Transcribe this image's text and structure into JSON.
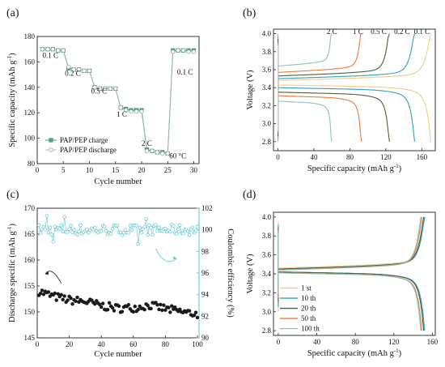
{
  "chart_data": [
    {
      "id": "a",
      "panel_label": "(a)",
      "type": "line",
      "xlabel": "Cycle number",
      "ylabel": "Specific capacity (mAh g",
      "ylabel_sup": "-1",
      "ylabel_end": ")",
      "xlim": [
        0,
        31
      ],
      "ylim": [
        80,
        180
      ],
      "xticks": [
        0,
        5,
        10,
        15,
        20,
        25,
        30
      ],
      "yticks": [
        80,
        100,
        120,
        140,
        160,
        180
      ],
      "rate_labels": [
        "0.1 C",
        "0.2 C",
        "0.5 C",
        "1 C",
        "2 C",
        "0.1 C"
      ],
      "temperature": "60 °C",
      "legend": [
        "PAP/PEP charge",
        "PAP/PEP discharge"
      ],
      "series": [
        {
          "name": "PAP/PEP charge",
          "color": "#4aa38c",
          "marker": "filled-square",
          "x": [
            1,
            2,
            3,
            4,
            5,
            6,
            7,
            8,
            9,
            10,
            11,
            12,
            13,
            14,
            15,
            16,
            17,
            18,
            19,
            20,
            21,
            22,
            23,
            24,
            25,
            26,
            27,
            28,
            29,
            30
          ],
          "y": [
            170,
            170,
            170,
            169,
            169,
            155,
            154,
            154,
            153,
            153,
            140,
            139,
            139,
            139,
            139,
            124,
            123,
            122,
            122,
            122,
            91,
            90,
            89,
            89,
            88,
            169,
            169,
            169,
            169,
            169
          ]
        },
        {
          "name": "PAP/PEP discharge",
          "color": "#4aa38c",
          "marker": "open-circle",
          "x": [
            1,
            2,
            3,
            4,
            5,
            6,
            7,
            8,
            9,
            10,
            11,
            12,
            13,
            14,
            15,
            16,
            17,
            18,
            19,
            20,
            21,
            22,
            23,
            24,
            25,
            26,
            27,
            28,
            29,
            30
          ],
          "y": [
            170,
            170,
            170,
            169,
            169,
            156,
            154,
            154,
            153,
            153,
            140,
            139,
            139,
            139,
            139,
            124,
            122,
            121,
            121,
            121,
            90,
            90,
            89,
            88,
            88,
            168,
            169,
            169,
            168,
            168
          ]
        }
      ]
    },
    {
      "id": "b",
      "panel_label": "(b)",
      "type": "line",
      "xlabel": "Specific capacity (mAh g",
      "xlabel_sup": "-1",
      "xlabel_end": ")",
      "ylabel": "Voltage (V)",
      "xlim": [
        -5,
        175
      ],
      "ylim": [
        2.7,
        4.05
      ],
      "xticks": [
        0,
        40,
        80,
        120,
        160
      ],
      "yticks": [
        2.8,
        3.0,
        3.2,
        3.4,
        3.6,
        3.8,
        4.0
      ],
      "series": [
        {
          "name": "2 C",
          "color": "#8fc1bd",
          "capacity": 60,
          "charge_plateau": 3.64,
          "discharge_plateau": 3.22
        },
        {
          "name": "1 C",
          "color": "#ef7a3c",
          "capacity": 93,
          "charge_plateau": 3.57,
          "discharge_plateau": 3.28
        },
        {
          "name": "0.5 C",
          "color": "#4e5e3a",
          "capacity": 124,
          "charge_plateau": 3.53,
          "discharge_plateau": 3.32
        },
        {
          "name": "0.2 C",
          "color": "#2ca3bc",
          "capacity": 152,
          "charge_plateau": 3.5,
          "discharge_plateau": 3.37
        },
        {
          "name": "0.1 C",
          "color": "#f5c98a",
          "capacity": 170,
          "charge_plateau": 3.48,
          "discharge_plateau": 3.4
        }
      ]
    },
    {
      "id": "c",
      "panel_label": "(c)",
      "type": "scatter",
      "xlabel": "Cycle number",
      "ylabel": "Discharge specific (mAh g",
      "ylabel_sup": "-1",
      "ylabel_end": ")",
      "y2label": "Coulombic efficiency (%)",
      "xlim": [
        0,
        101
      ],
      "ylim": [
        145,
        170
      ],
      "y2lim": [
        90,
        102
      ],
      "xticks": [
        0,
        20,
        40,
        60,
        80,
        100
      ],
      "yticks": [
        145,
        150,
        155,
        160,
        165,
        170
      ],
      "y2ticks": [
        90,
        92,
        94,
        96,
        98,
        100,
        102
      ],
      "capacity_color": "#1a1a1a",
      "efficiency_color": "#5cc6d0",
      "capacity_anchor_x": [
        1,
        10,
        20,
        30,
        40,
        50,
        60,
        70,
        80,
        90,
        100
      ],
      "capacity_anchor_y": [
        154,
        153,
        152.3,
        152,
        151.2,
        150.7,
        150.8,
        151.3,
        150.6,
        150,
        149.6
      ],
      "efficiency_anchor_x": [
        1,
        100
      ],
      "efficiency_anchor_y": [
        100.1,
        100
      ]
    },
    {
      "id": "d",
      "panel_label": "(d)",
      "type": "line",
      "xlabel": "Specific capacity (mAh g",
      "xlabel_sup": "-1",
      "xlabel_end": ")",
      "ylabel": "Voltage (V)",
      "xlim": [
        -5,
        163
      ],
      "ylim": [
        2.75,
        4.05
      ],
      "xticks": [
        0,
        40,
        80,
        120,
        160
      ],
      "yticks": [
        2.8,
        3.0,
        3.2,
        3.4,
        3.6,
        3.8,
        4.0
      ],
      "series": [
        {
          "name": "1 st",
          "color": "#f5c98a",
          "capacity": 151,
          "charge_plateau": 3.46,
          "discharge_plateau": 3.39
        },
        {
          "name": "10 th",
          "color": "#2ca3bc",
          "capacity": 152,
          "charge_plateau": 3.45,
          "discharge_plateau": 3.39
        },
        {
          "name": "20 th",
          "color": "#4e5e3a",
          "capacity": 151,
          "charge_plateau": 3.45,
          "discharge_plateau": 3.39
        },
        {
          "name": "50 th",
          "color": "#ef7a3c",
          "capacity": 149,
          "charge_plateau": 3.44,
          "discharge_plateau": 3.38
        },
        {
          "name": "100 th",
          "color": "#8fc1bd",
          "capacity": 148,
          "charge_plateau": 3.44,
          "discharge_plateau": 3.38
        }
      ]
    }
  ]
}
